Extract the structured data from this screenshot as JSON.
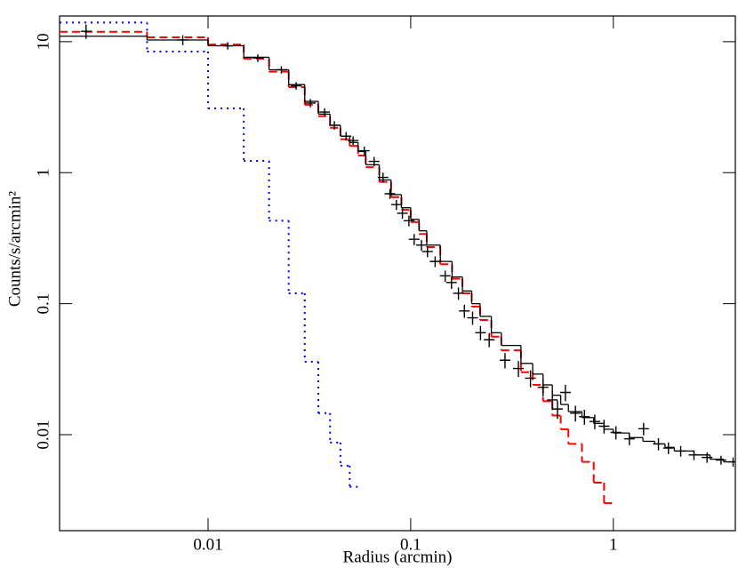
{
  "chart_data": {
    "type": "line",
    "xlabel": "Radius (arcmin)",
    "ylabel": "Counts/s/arcmin²",
    "xscale": "log",
    "yscale": "log",
    "xlim": [
      0.00185,
      4.0
    ],
    "ylim": [
      0.00185,
      15.7
    ],
    "xticks": [
      0.01,
      0.1,
      1
    ],
    "yticks": [
      0.01,
      0.1,
      1,
      10
    ],
    "series": [
      {
        "type": "step",
        "color": "#0000ff",
        "linestyle": "dotted",
        "bins": [
          0.00185,
          0.005,
          0.01,
          0.015,
          0.02,
          0.025,
          0.03,
          0.035,
          0.04,
          0.045,
          0.05,
          0.055
        ],
        "values": [
          14,
          8.4,
          3.1,
          1.23,
          0.43,
          0.12,
          0.036,
          0.0146,
          0.0087,
          0.0058,
          0.004
        ]
      },
      {
        "type": "step",
        "color": "#ff0000",
        "linestyle": "dashed",
        "bins": [
          0.00185,
          0.005,
          0.01,
          0.015,
          0.02,
          0.025,
          0.03,
          0.035,
          0.04,
          0.045,
          0.05,
          0.055,
          0.06,
          0.07,
          0.08,
          0.09,
          0.1,
          0.11,
          0.12,
          0.14,
          0.16,
          0.18,
          0.2,
          0.22,
          0.25,
          0.28,
          0.35,
          0.4,
          0.45,
          0.5,
          0.55,
          0.6,
          0.7,
          0.8,
          0.9,
          1.0
        ],
        "values": [
          11.9,
          10.8,
          9.5,
          7.4,
          5.9,
          4.5,
          3.3,
          2.7,
          2.2,
          1.8,
          1.6,
          1.35,
          1.1,
          0.85,
          0.65,
          0.52,
          0.42,
          0.34,
          0.27,
          0.2,
          0.155,
          0.12,
          0.095,
          0.075,
          0.056,
          0.044,
          0.03,
          0.024,
          0.018,
          0.014,
          0.011,
          0.0085,
          0.0062,
          0.0043,
          0.003
        ]
      },
      {
        "type": "step",
        "color": "#000000",
        "linestyle": "solid",
        "bins": [
          0.00185,
          0.005,
          0.01,
          0.015,
          0.02,
          0.025,
          0.03,
          0.035,
          0.04,
          0.045,
          0.05,
          0.055,
          0.06,
          0.07,
          0.08,
          0.09,
          0.1,
          0.11,
          0.12,
          0.14,
          0.16,
          0.18,
          0.2,
          0.22,
          0.25,
          0.28,
          0.35,
          0.4,
          0.45,
          0.5,
          0.55,
          0.6,
          0.7,
          0.8,
          0.9,
          1.0,
          1.2,
          1.4,
          1.6,
          1.8,
          2.0,
          2.5,
          3.0,
          3.5,
          4.0
        ],
        "values": [
          11,
          10.3,
          9.3,
          7.6,
          6.1,
          4.7,
          3.5,
          2.8,
          2.3,
          1.9,
          1.7,
          1.45,
          1.15,
          0.88,
          0.68,
          0.54,
          0.44,
          0.36,
          0.28,
          0.21,
          0.16,
          0.125,
          0.1,
          0.08,
          0.06,
          0.048,
          0.035,
          0.029,
          0.024,
          0.02,
          0.017,
          0.015,
          0.0135,
          0.0122,
          0.011,
          0.0103,
          0.0095,
          0.0089,
          0.0085,
          0.008,
          0.0075,
          0.007,
          0.0065,
          0.0062
        ]
      },
      {
        "type": "errorbar",
        "color": "#000000",
        "x": [
          0.0025,
          0.0075,
          0.0125,
          0.0176,
          0.023,
          0.0272,
          0.032,
          0.0376,
          0.042,
          0.048,
          0.052,
          0.059,
          0.066,
          0.073,
          0.079,
          0.085,
          0.091,
          0.098,
          0.104,
          0.113,
          0.121,
          0.132,
          0.148,
          0.159,
          0.172,
          0.184,
          0.202,
          0.221,
          0.244,
          0.292,
          0.34,
          0.39,
          0.45,
          0.5,
          0.53,
          0.58,
          0.65,
          0.72,
          0.81,
          0.9,
          1.03,
          1.2,
          1.41,
          1.67,
          1.87,
          2.15,
          2.5,
          2.9,
          3.4,
          3.9
        ],
        "values": [
          12,
          10.3,
          9.3,
          7.5,
          6.1,
          4.6,
          3.4,
          2.9,
          2.3,
          1.9,
          1.76,
          1.47,
          1.22,
          0.92,
          0.69,
          0.57,
          0.49,
          0.43,
          0.31,
          0.28,
          0.25,
          0.21,
          0.163,
          0.145,
          0.12,
          0.088,
          0.078,
          0.06,
          0.053,
          0.037,
          0.032,
          0.027,
          0.023,
          0.0184,
          0.0157,
          0.021,
          0.0146,
          0.0137,
          0.0126,
          0.0116,
          0.0104,
          0.0093,
          0.0111,
          0.0085,
          0.0079,
          0.0075,
          0.007,
          0.0067,
          0.0064,
          0.0062
        ],
        "yerr": [
          1.5,
          0.9,
          0.6,
          0.5,
          0.4,
          0.3,
          0.25,
          0.2,
          0.17,
          0.14,
          0.13,
          0.11,
          0.1,
          0.08,
          0.06,
          0.05,
          0.045,
          0.04,
          0.03,
          0.027,
          0.024,
          0.02,
          0.016,
          0.015,
          0.013,
          0.01,
          0.009,
          0.0075,
          0.0065,
          0.005,
          0.0045,
          0.004,
          0.0035,
          0.003,
          0.0025,
          0.003,
          0.002,
          0.0018,
          0.0016,
          0.0014,
          0.0012,
          0.001,
          0.0012,
          0.0009,
          0.0008,
          0.0007,
          0.0006,
          0.0006,
          0.0005,
          0.0005
        ]
      }
    ]
  }
}
